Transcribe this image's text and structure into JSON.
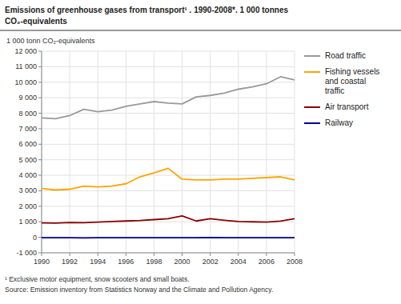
{
  "chart_data": {
    "type": "line",
    "title": "Emissions of greenhouse gases from transport¹ . 1990-2008*. 1 000 tonnes",
    "subtitle": "CO₂-equivalents",
    "ylabel": "1 000 tonn CO₂-equivalents",
    "annotations": [
      "¹ Exclusive motor equipment, snow scooters and small boats.",
      "Source: Emission inventory from Statistics Norway and the Climate and Pollution Agency."
    ],
    "x": [
      1990,
      1991,
      1992,
      1993,
      1994,
      1995,
      1996,
      1997,
      1998,
      1999,
      2000,
      2001,
      2002,
      2003,
      2004,
      2005,
      2006,
      2007,
      2008
    ],
    "series": [
      {
        "name": "Road traffic",
        "color": "#999999",
        "values": [
          7700,
          7650,
          7850,
          8250,
          8100,
          8200,
          8450,
          8600,
          8750,
          8650,
          8600,
          9050,
          9150,
          9300,
          9550,
          9700,
          9900,
          10350,
          10150
        ]
      },
      {
        "name": "Fishing vessels\nand coastal\ntraffic",
        "color": "#FFA500",
        "values": [
          3150,
          3050,
          3100,
          3300,
          3250,
          3300,
          3450,
          3900,
          4150,
          4450,
          3750,
          3700,
          3700,
          3750,
          3750,
          3800,
          3850,
          3900,
          3700
        ]
      },
      {
        "name": "Air transport",
        "color": "#8B0000",
        "values": [
          930,
          920,
          950,
          940,
          980,
          1020,
          1050,
          1080,
          1140,
          1200,
          1380,
          1050,
          1200,
          1100,
          1020,
          1000,
          980,
          1040,
          1200
        ]
      },
      {
        "name": "Railway",
        "color": "#00008B",
        "values": [
          -30,
          -25,
          -30,
          -40,
          -30,
          -25,
          -30,
          -30,
          -25,
          -25,
          -30,
          -25,
          -20,
          -25,
          -30,
          -30,
          -25,
          -30,
          -30
        ]
      }
    ],
    "xlim": [
      1990,
      2008
    ],
    "xticks": [
      1990,
      1992,
      1994,
      1996,
      1998,
      2000,
      2002,
      2004,
      2006,
      2008
    ],
    "ylim": [
      -1000,
      12000
    ],
    "yticks": [
      {
        "value": -1000,
        "label": "-1 000"
      },
      0,
      {
        "value": 1000,
        "label": "1 000"
      },
      {
        "value": 2000,
        "label": "2 000"
      },
      {
        "value": 3000,
        "label": "3 000"
      },
      {
        "value": 4000,
        "label": "4 000"
      },
      {
        "value": 5000,
        "label": "5 000"
      },
      {
        "value": 6000,
        "label": "6 000"
      },
      {
        "value": 7000,
        "label": "7 000"
      },
      {
        "value": 8000,
        "label": "8 000"
      },
      {
        "value": 9000,
        "label": "9 000"
      },
      {
        "value": 10000,
        "label": "10 000"
      },
      {
        "value": 11000,
        "label": "11 000"
      },
      {
        "value": 12000,
        "label": "12 000"
      }
    ],
    "grid": true,
    "legend": "right"
  }
}
